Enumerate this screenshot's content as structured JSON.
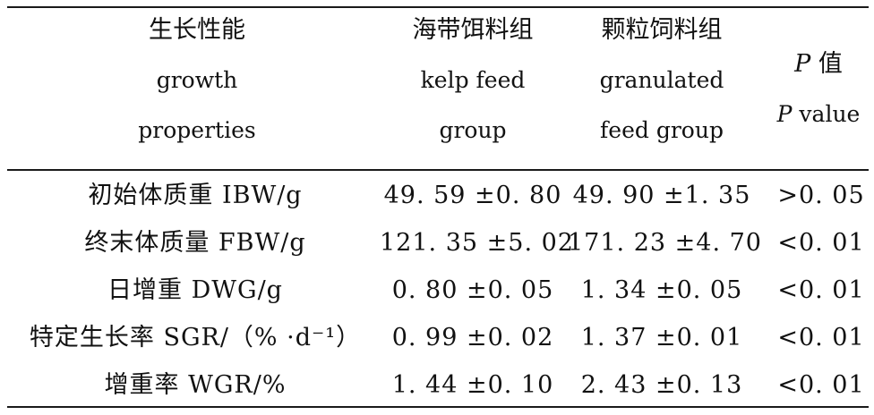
{
  "header": {
    "col1": {
      "cn": "生长性能",
      "en1": "growth",
      "en2": "properties"
    },
    "col2": {
      "cn": "海带饵料组",
      "en1": "kelp feed",
      "en2": "group"
    },
    "col3": {
      "cn": "颗粒饲料组",
      "en1": "granulated",
      "en2": "feed group"
    },
    "col4": {
      "cn_p": "P",
      "cn": " 值",
      "en_p": "P",
      "en": " value"
    }
  },
  "rows": [
    {
      "property": "初始体质重 IBW/g",
      "kelp": "49. 59 ±0. 80",
      "granulated": "49. 90 ±1. 35",
      "p": ">0. 05"
    },
    {
      "property": "终末体质量 FBW/g",
      "kelp": "121. 35 ±5. 02",
      "granulated": "171. 23 ±4. 70",
      "p": "<0. 01"
    },
    {
      "property": "日增重 DWG/g",
      "kelp": "0. 80 ±0. 05",
      "granulated": "1. 34 ±0. 05",
      "p": "<0. 01"
    },
    {
      "property": "特定生长率 SGR/（% ·d⁻¹）",
      "kelp": "0. 99 ±0. 02",
      "granulated": "1. 37 ±0. 01",
      "p": "<0. 01"
    },
    {
      "property": "增重率 WGR/%",
      "kelp": "1. 44 ±0. 10",
      "granulated": "2. 43 ±0. 13",
      "p": "<0. 01"
    }
  ]
}
